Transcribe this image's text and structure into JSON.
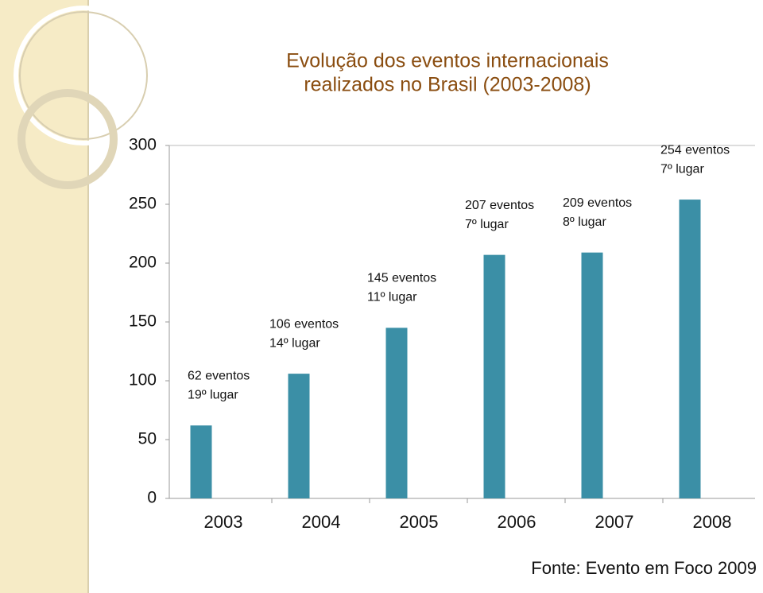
{
  "chart_data": {
    "type": "bar",
    "title": [
      "Evolução dos eventos internacionais",
      "realizados no Brasil (2003-2008)"
    ],
    "categories": [
      "2003",
      "2004",
      "2005",
      "2006",
      "2007",
      "2008"
    ],
    "values": [
      62,
      106,
      145,
      207,
      209,
      254
    ],
    "value_labels": [
      "62 eventos",
      "106 eventos",
      "145 eventos",
      "207 eventos",
      "209 eventos",
      "254 eventos"
    ],
    "ranks": [
      "19º lugar",
      "14º lugar",
      "11º lugar",
      "7º lugar",
      "8º lugar",
      "7º lugar"
    ],
    "color": "#3b8fa6",
    "ylim": [
      0,
      300
    ],
    "yticks": [
      0,
      50,
      100,
      150,
      200,
      250,
      300
    ],
    "source": "Fonte: Evento em Foco 2009"
  }
}
